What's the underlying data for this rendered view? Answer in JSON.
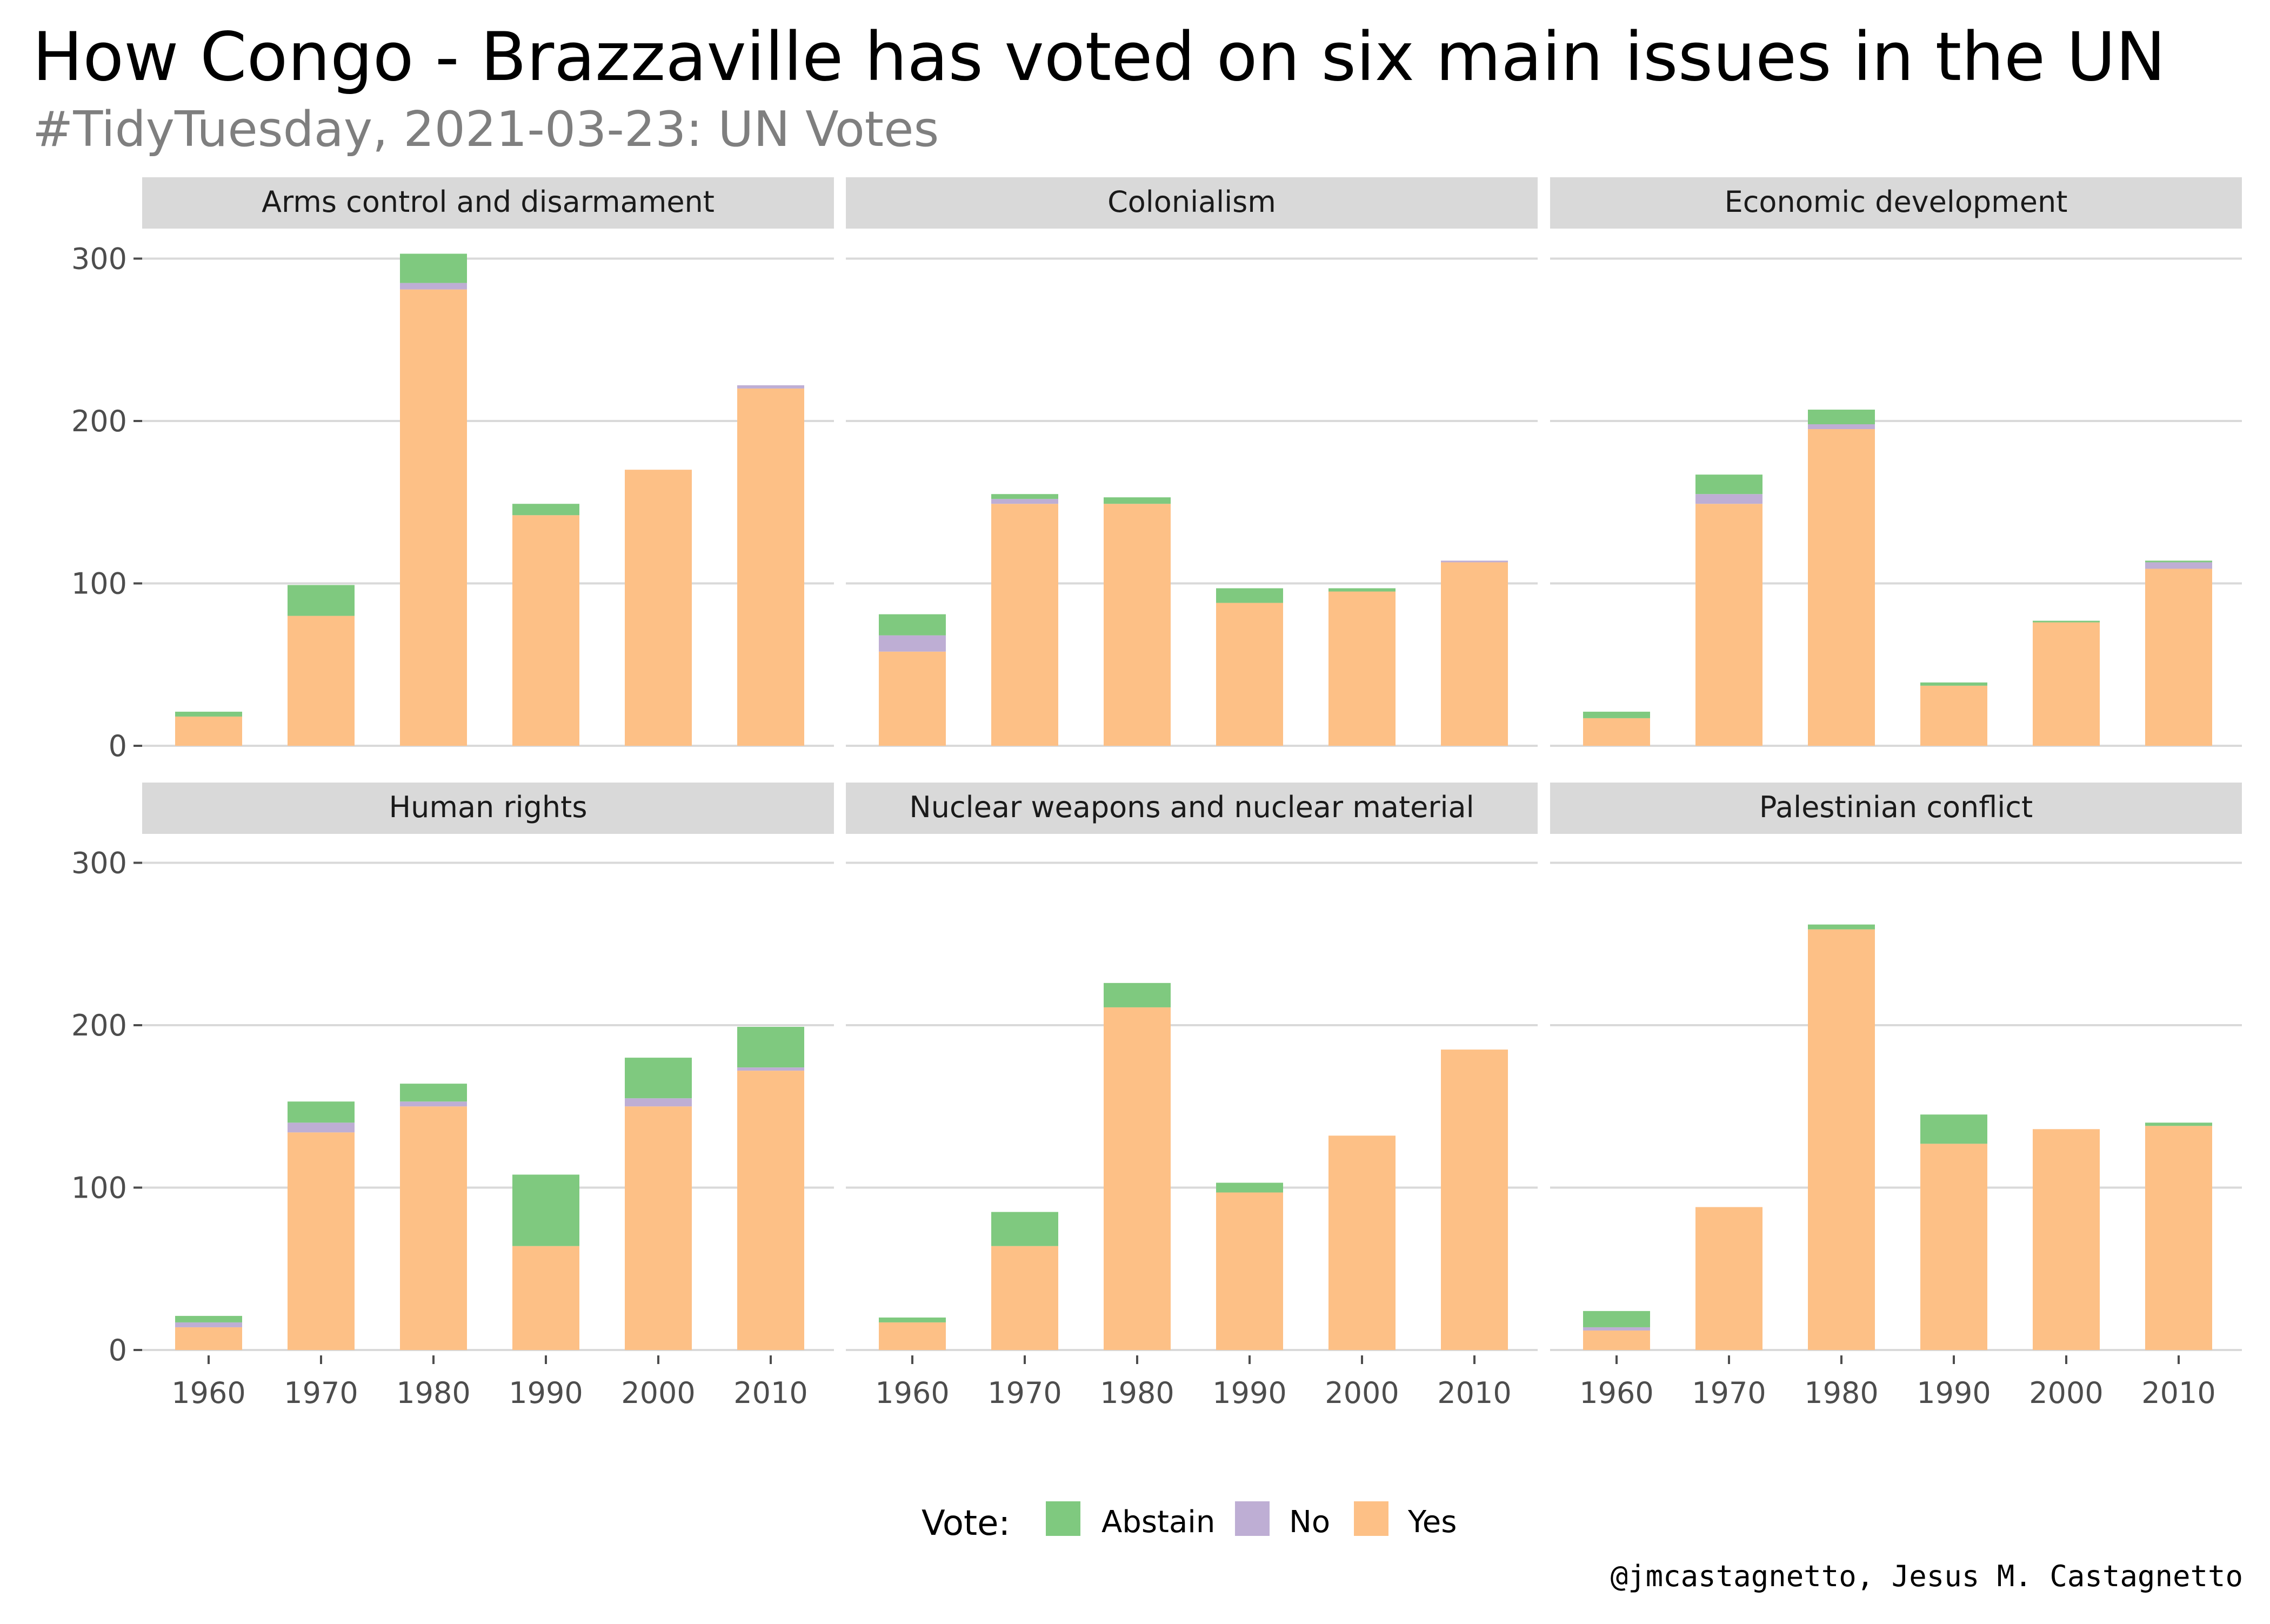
{
  "title": "How Congo - Brazzaville has voted on six main issues in the UN",
  "subtitle": "#TidyTuesday, 2021-03-23: UN Votes",
  "caption": "@jmcastagnetto, Jesus M. Castagnetto",
  "legend": {
    "title": "Vote:",
    "items": [
      {
        "label": "Abstain",
        "color": "#7FC97F"
      },
      {
        "label": "No",
        "color": "#BEAED4"
      },
      {
        "label": "Yes",
        "color": "#FDC086"
      }
    ]
  },
  "colors": {
    "panel_strip": "#D9D9D9",
    "grid": "#D9D9D9",
    "subtitle": "#7F7F7F",
    "axis_text": "#4D4D4D"
  },
  "chart_data": {
    "type": "bar",
    "stacked": true,
    "facets": true,
    "categories": [
      "1960",
      "1970",
      "1980",
      "1990",
      "2000",
      "2010"
    ],
    "y_ticks": [
      "0",
      "100",
      "200",
      "300"
    ],
    "ylim": [
      0,
      310
    ],
    "grid": true,
    "legend_position": "bottom",
    "panels": [
      {
        "name": "Arms control and disarmament",
        "series": [
          {
            "name": "Yes",
            "values": [
              18,
              80,
              281,
              142,
              170,
              220
            ]
          },
          {
            "name": "No",
            "values": [
              0,
              0,
              4,
              0,
              0,
              2
            ]
          },
          {
            "name": "Abstain",
            "values": [
              3,
              19,
              18,
              7,
              0,
              0
            ]
          }
        ]
      },
      {
        "name": "Colonialism",
        "series": [
          {
            "name": "Yes",
            "values": [
              58,
              149,
              149,
              88,
              95,
              113
            ]
          },
          {
            "name": "No",
            "values": [
              10,
              3,
              0,
              0,
              0,
              1
            ]
          },
          {
            "name": "Abstain",
            "values": [
              13,
              3,
              4,
              9,
              2,
              0
            ]
          }
        ]
      },
      {
        "name": "Economic development",
        "series": [
          {
            "name": "Yes",
            "values": [
              17,
              149,
              195,
              37,
              76,
              109
            ]
          },
          {
            "name": "No",
            "values": [
              0,
              6,
              3,
              0,
              0,
              4
            ]
          },
          {
            "name": "Abstain",
            "values": [
              4,
              12,
              9,
              2,
              1,
              1
            ]
          }
        ]
      },
      {
        "name": "Human rights",
        "series": [
          {
            "name": "Yes",
            "values": [
              14,
              134,
              150,
              64,
              150,
              172
            ]
          },
          {
            "name": "No",
            "values": [
              3,
              6,
              3,
              0,
              5,
              2
            ]
          },
          {
            "name": "Abstain",
            "values": [
              4,
              13,
              11,
              44,
              25,
              25
            ]
          }
        ]
      },
      {
        "name": "Nuclear weapons and nuclear material",
        "series": [
          {
            "name": "Yes",
            "values": [
              17,
              64,
              211,
              97,
              132,
              185
            ]
          },
          {
            "name": "No",
            "values": [
              0,
              0,
              0,
              0,
              0,
              0
            ]
          },
          {
            "name": "Abstain",
            "values": [
              3,
              21,
              15,
              6,
              0,
              0
            ]
          }
        ]
      },
      {
        "name": "Palestinian conflict",
        "series": [
          {
            "name": "Yes",
            "values": [
              12,
              88,
              259,
              127,
              136,
              138
            ]
          },
          {
            "name": "No",
            "values": [
              2,
              0,
              0,
              0,
              0,
              0
            ]
          },
          {
            "name": "Abstain",
            "values": [
              10,
              0,
              3,
              18,
              0,
              2
            ]
          }
        ]
      }
    ]
  }
}
